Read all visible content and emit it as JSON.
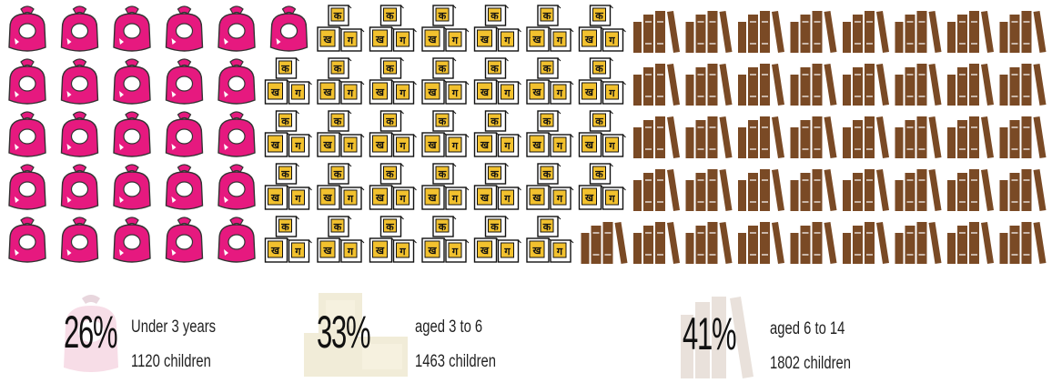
{
  "chart_data": {
    "type": "pictogram",
    "rows": 5,
    "columns": 20,
    "categories": [
      {
        "key": "bib",
        "icon": "bib-icon",
        "color": "#e6197f",
        "value": 26,
        "percent_label": "26%",
        "label": "Under 3 years",
        "count_label": "1120 children"
      },
      {
        "key": "block",
        "icon": "blocks-icon",
        "color": "#f2c12e",
        "value": 33,
        "percent_label": "33%",
        "label": "aged 3 to 6",
        "count_label": "1463 children"
      },
      {
        "key": "book",
        "icon": "books-icon",
        "color": "#7a4a25",
        "value": 41,
        "percent_label": "41%",
        "label": "aged 6 to 14",
        "count_label": "1802 children"
      }
    ],
    "block_letters": [
      "क",
      "ख",
      "ग"
    ]
  }
}
